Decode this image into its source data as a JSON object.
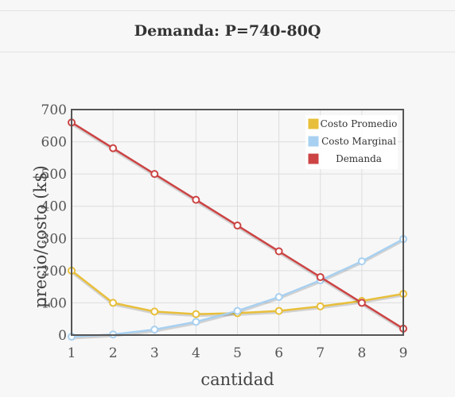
{
  "header": {
    "title": "Demanda: P=740-80Q"
  },
  "colors": {
    "costo_promedio": "#e8bf3a",
    "costo_marginal": "#a8d0f0",
    "demanda": "#cc4444",
    "grid": "#dddddd",
    "frame": "#555555"
  },
  "chart_data": {
    "type": "line",
    "x": [
      1,
      2,
      3,
      4,
      5,
      6,
      7,
      8,
      9
    ],
    "xlabel": "cantidad",
    "ylabel": "precio/costo (k$)",
    "xlim": [
      1,
      9
    ],
    "ylim": [
      0,
      700
    ],
    "yticks": [
      0,
      100,
      200,
      300,
      400,
      500,
      600,
      700
    ],
    "xticks": [
      1,
      2,
      3,
      4,
      5,
      6,
      7,
      8,
      9
    ],
    "grid": true,
    "legend_position": "top-right",
    "series": [
      {
        "name": "Costo Promedio",
        "color": "#e8bf3a",
        "values": [
          200,
          100,
          73,
          65,
          68,
          75,
          89,
          106,
          128
        ]
      },
      {
        "name": "Costo Marginal",
        "color": "#a8d0f0",
        "values": [
          -5,
          2,
          17,
          41,
          75,
          118,
          170,
          229,
          298
        ]
      },
      {
        "name": "Demanda",
        "color": "#cc4444",
        "values": [
          660,
          580,
          500,
          420,
          340,
          260,
          180,
          100,
          20
        ]
      }
    ]
  }
}
